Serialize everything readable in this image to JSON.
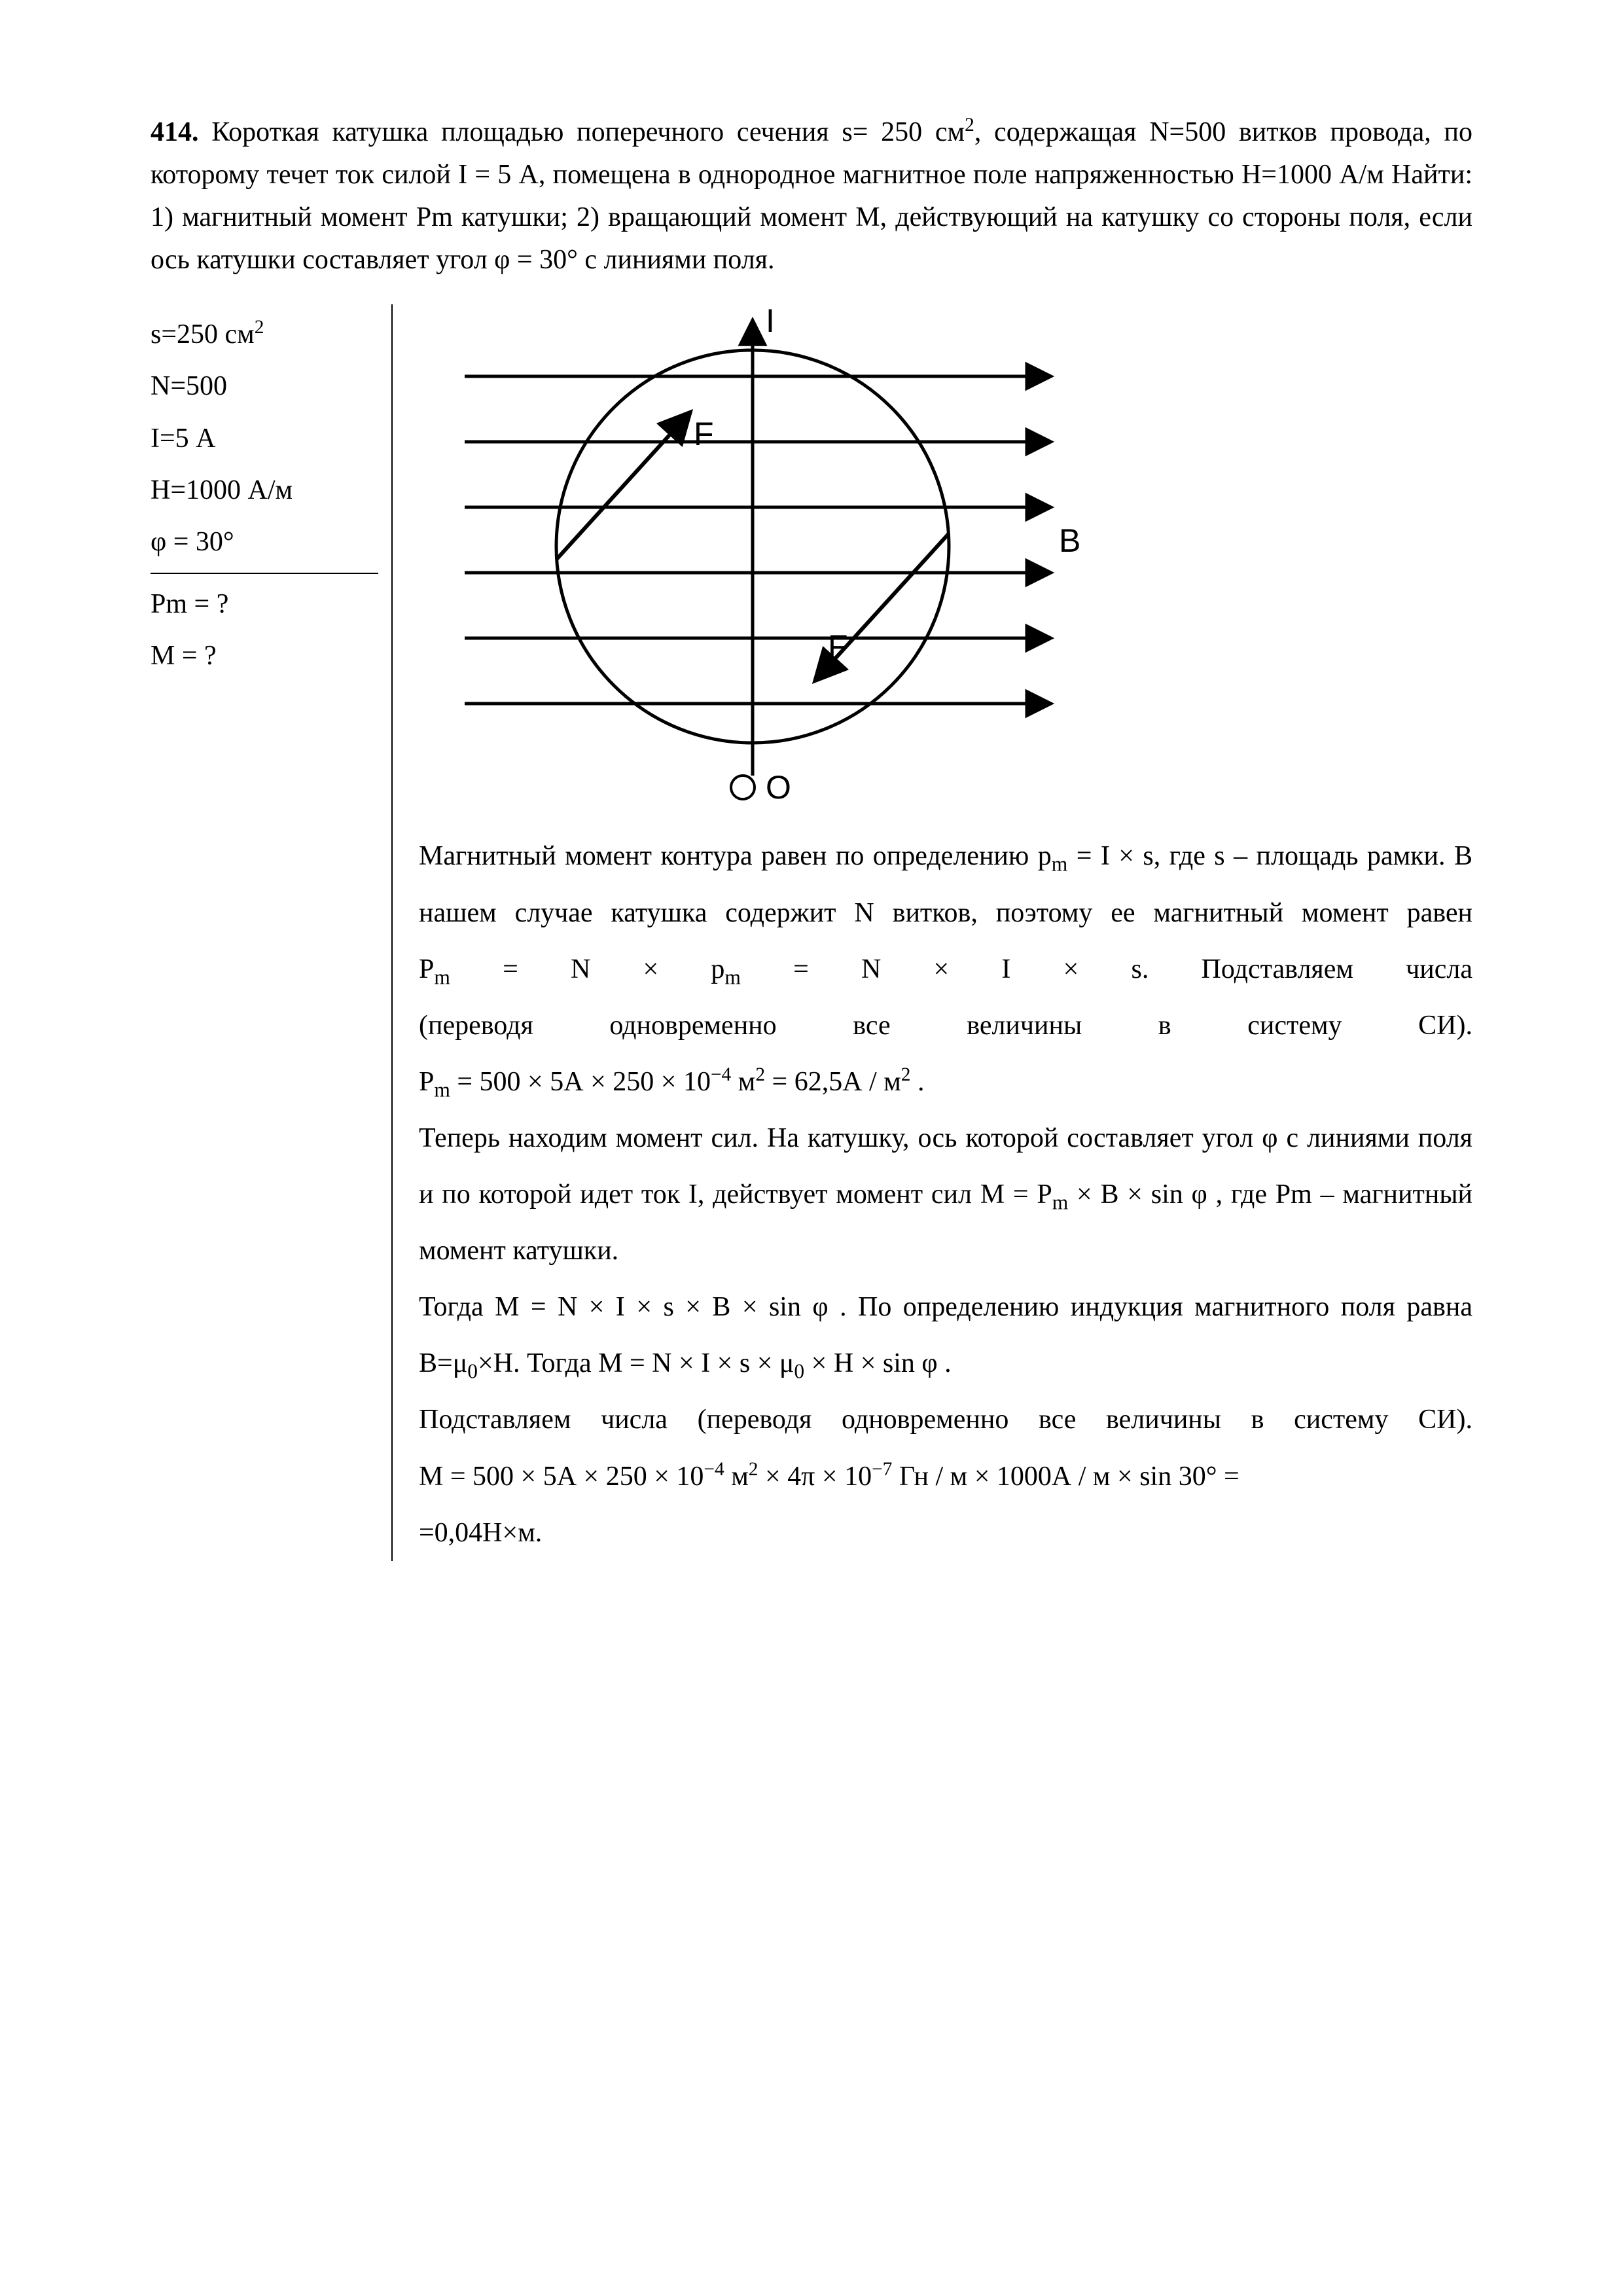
{
  "problem": {
    "number": "414.",
    "text_html": "Короткая  катушка   площадью  поперечного   сечения   s= 250 см<sup>2</sup>, содержащая N=500 витков провода, по которому течет ток силой I = 5 А, помещена в однородное магнитное поле напряженностью  H=1000  А/м    Найти:    1)    магнитный   момент Pm   катушки;  2) вращающий момент M, действующий на катушку со стороны поля, если ось катушки составляет угол φ = 30° с линиями поля."
  },
  "given": {
    "l1": "s=250 см",
    "l1_sup": "2",
    "l2": "N=500",
    "l3": "I=5 А",
    "l4": "H=1000  А/м",
    "l5": "φ = 30°",
    "l6": "Pm = ?",
    "l7": "M = ?"
  },
  "diagram": {
    "stroke": "#000000",
    "stroke_width": 4,
    "arrow_width": 5,
    "circle_r": 300,
    "labels": {
      "I": "I",
      "F1": "F",
      "F2": "F",
      "B": "B",
      "O": "O"
    },
    "font_family": "Arial, Helvetica, sans-serif",
    "font_size": 50
  },
  "explain": {
    "p1_html": "Магнитный  момент  контура  равен  по  определению  <span class='formula'>p<sub>m</sub> = I × s</span>,  где  s  – площадь рамки. В нашем случае катушка содержит N витков, поэтому ее магнитный   момент   равен   <span class='formula'>P<sub>m</sub> = N × p<sub>m</sub> = N × I × s</span>.   Подставляем  числа (переводя&nbsp;&nbsp;&nbsp;&nbsp;одновременно&nbsp;&nbsp;&nbsp;&nbsp;все&nbsp;&nbsp;&nbsp;&nbsp;величины&nbsp;&nbsp;&nbsp;&nbsp;в&nbsp;&nbsp;&nbsp;&nbsp;систему&nbsp;&nbsp;&nbsp;&nbsp;СИ). <span class='formula'>P<sub>m</sub> = 500 × 5А × 250 × 10<sup>−4</sup> м<sup>2</sup> = 62,5А / м<sup>2</sup></span> .",
    "p2_html": "Теперь находим момент сил. На катушку, ось которой составляет угол φ с линиями  поля  и  по  которой  идет  ток  I,  действует  момент  сил <span class='formula'>M = P<sub>m</sub> × B × sin φ</span> , где Pm – магнитный момент катушки.",
    "p3_html": "Тогда   <span class='formula'>M = N × I × s × B × sin φ</span> . По определению индукция магнитного поля равна B=μ<sub>0</sub>×H. Тогда <span class='formula'>M = N × I × s × μ<sub>0</sub> × H × sin φ</span> .",
    "p4_html": "Подставляем числа (переводя одновременно все величины в систему СИ). <span class='formula'>M = 500 × 5А × 250 × 10<sup>−4</sup> м<sup>2</sup> × 4π × 10<sup>−7</sup> Гн / м × 1000А / м × sin 30° =</span><br><span class='formula'>=0,04Н×м.</span>"
  }
}
